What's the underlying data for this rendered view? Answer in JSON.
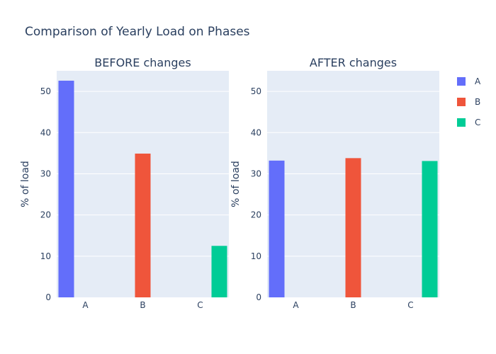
{
  "chart_data": {
    "type": "bar",
    "title": "Comparison of Yearly Load on Phases",
    "categories": [
      "A",
      "B",
      "C"
    ],
    "series": [
      {
        "name": "A",
        "color": "#636efa"
      },
      {
        "name": "B",
        "color": "#ef553b"
      },
      {
        "name": "C",
        "color": "#00cc96"
      }
    ],
    "ylim": [
      0,
      55
    ],
    "yticks": [
      0,
      10,
      20,
      30,
      40,
      50
    ],
    "grid": true,
    "legend_position": "top-right",
    "subplots": [
      {
        "title": "BEFORE changes",
        "xlabel": "",
        "ylabel": "% of load",
        "values": [
          52.6,
          34.9,
          12.5
        ]
      },
      {
        "title": "AFTER changes",
        "xlabel": "",
        "ylabel": "% of load",
        "values": [
          33.2,
          33.8,
          33.1
        ]
      }
    ]
  }
}
